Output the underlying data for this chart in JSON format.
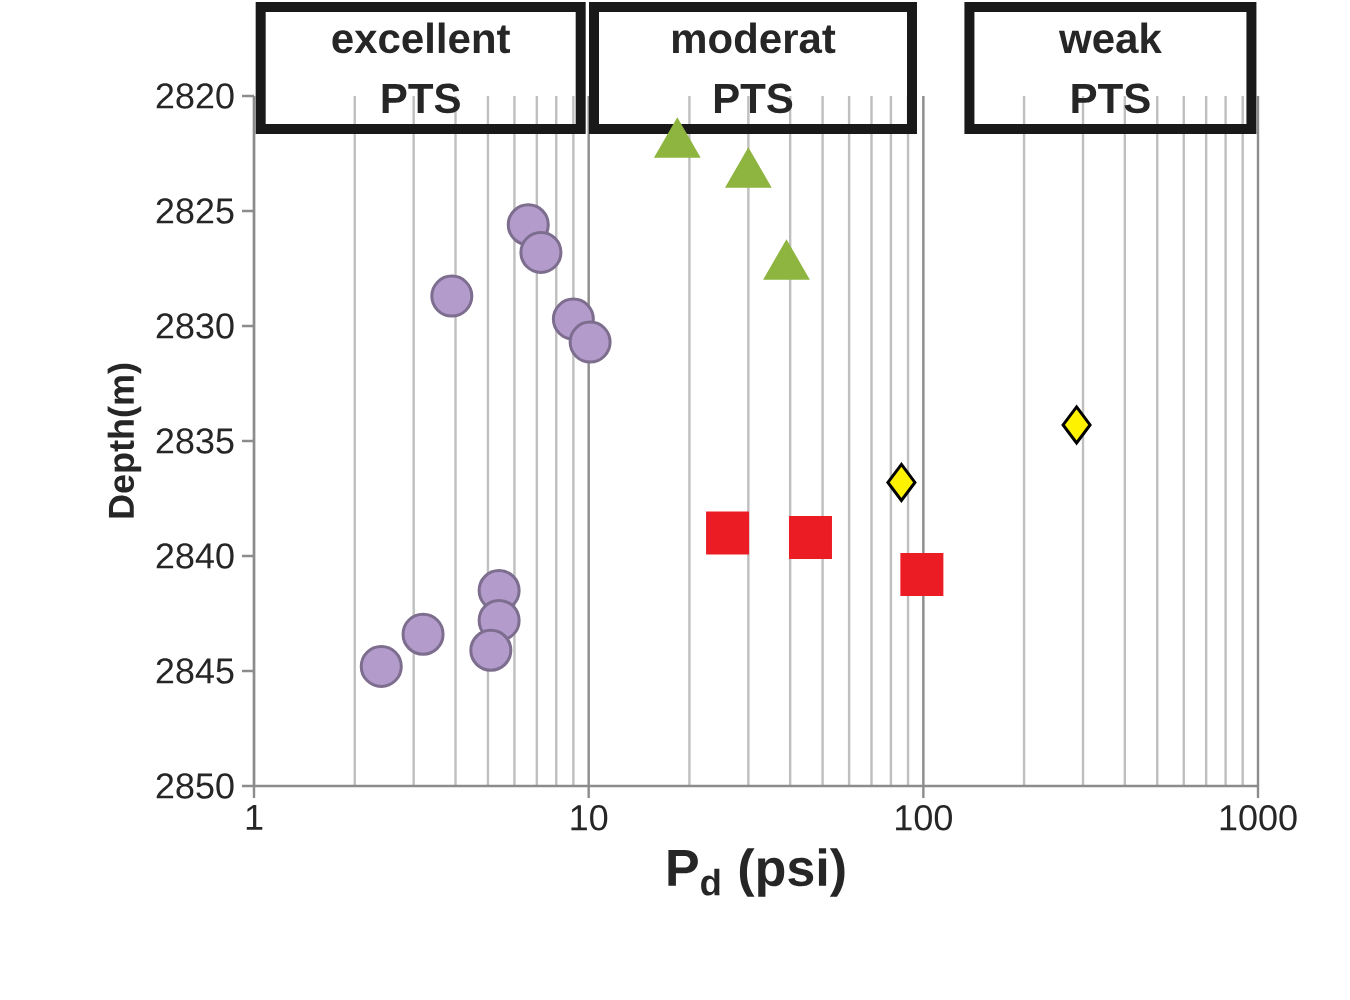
{
  "chart_data": {
    "type": "scatter",
    "xlabel": "P$_{d}$ (psi)",
    "ylabel": "Depth(m)",
    "log": "x",
    "grid": "x",
    "xlim": [
      1,
      1000
    ],
    "xticks": [
      1,
      10,
      100,
      1000
    ],
    "ylim": [
      2850,
      2820
    ],
    "yticks": [
      2820,
      2825,
      2830,
      2835,
      2840,
      2845,
      2850
    ],
    "annotations": [
      "excellent PTS",
      "moderat PTS",
      "weak PTS"
    ],
    "series": [
      {
        "color": "#b39ccb",
        "marker": "circle",
        "x": [
          6.6,
          7.2,
          3.9,
          9.0,
          10.1,
          5.4,
          5.4,
          3.2,
          5.1,
          2.4
        ],
        "values": [
          2825.6,
          2826.8,
          2828.7,
          2829.7,
          2830.7,
          2841.5,
          2842.8,
          2843.4,
          2844.1,
          2844.8
        ]
      },
      {
        "color": "#8db53f",
        "marker": "triangle",
        "x": [
          18.4,
          30,
          39
        ],
        "values": [
          2822.1,
          2823.4,
          2827.4
        ]
      },
      {
        "color": "#ec1c24",
        "marker": "square",
        "x": [
          26,
          46,
          99
        ],
        "values": [
          2839.0,
          2839.2,
          2840.8
        ]
      },
      {
        "color": "#fff200",
        "marker": "diamond",
        "x": [
          86,
          287
        ],
        "values": [
          2836.8,
          2834.3
        ]
      }
    ]
  }
}
